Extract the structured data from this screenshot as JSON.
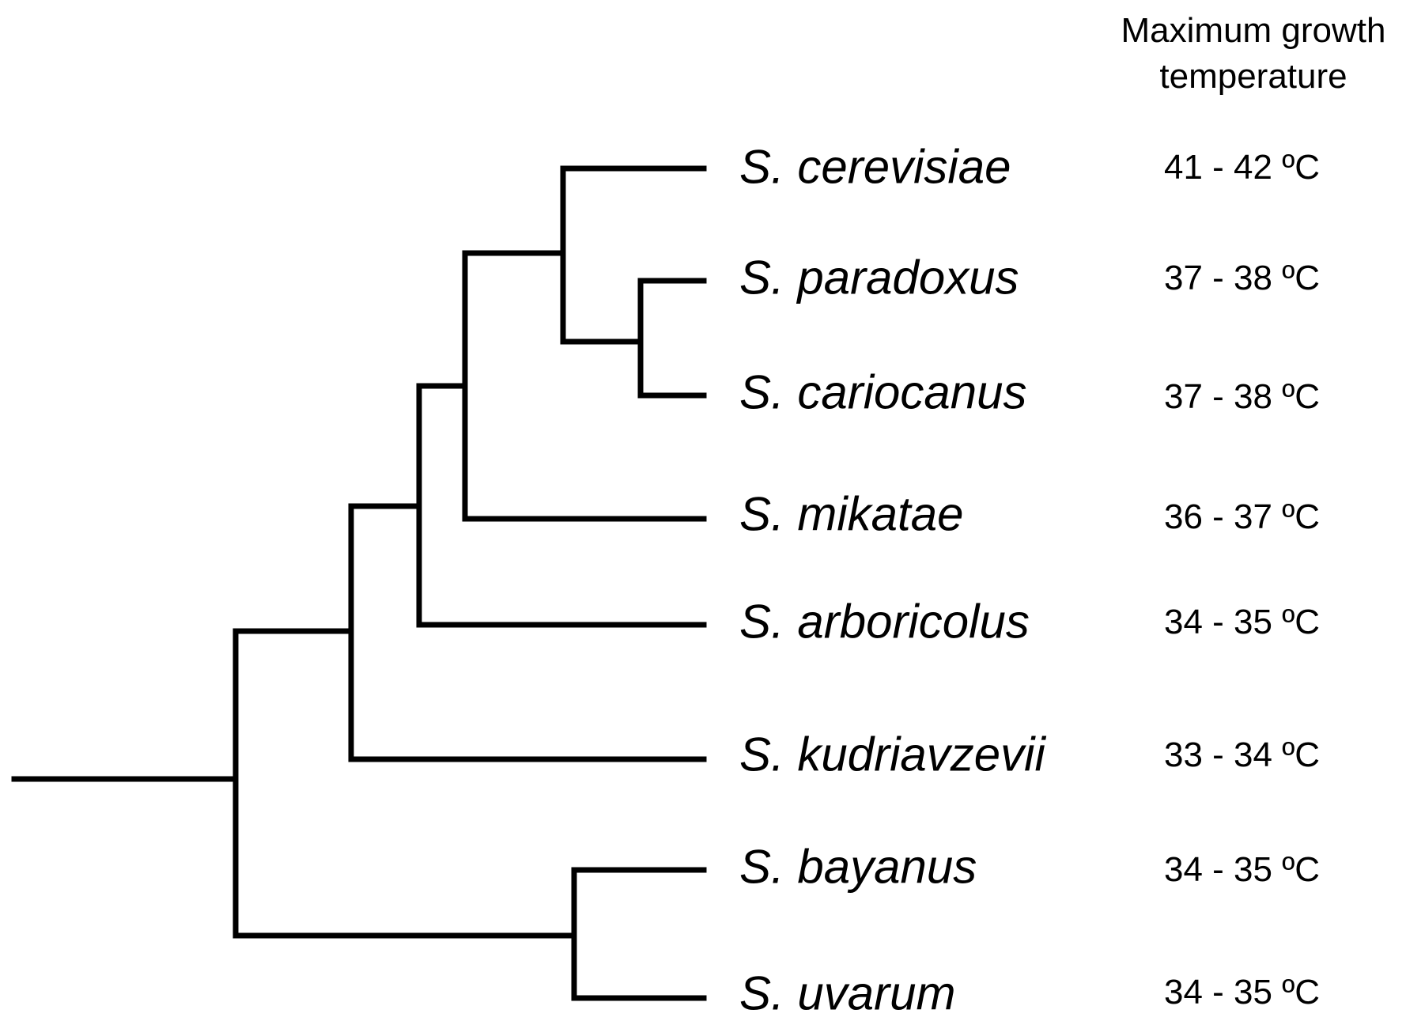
{
  "header": {
    "line1": "Maximum growth",
    "line2": "temperature"
  },
  "taxa": [
    {
      "species": "S. cerevisiae",
      "temperature": "41 - 42 ºC"
    },
    {
      "species": "S. paradoxus",
      "temperature": "37 - 38 ºC"
    },
    {
      "species": "S. cariocanus",
      "temperature": "37 - 38 ºC"
    },
    {
      "species": "S. mikatae",
      "temperature": "36 - 37 ºC"
    },
    {
      "species": "S. arboricolus",
      "temperature": "34 - 35 ºC"
    },
    {
      "species": "S. kudriavzevii",
      "temperature": "33 - 34 ºC"
    },
    {
      "species": "S. bayanus",
      "temperature": "34 - 35 ºC"
    },
    {
      "species": "S. uvarum",
      "temperature": "34 - 35 ºC"
    }
  ]
}
